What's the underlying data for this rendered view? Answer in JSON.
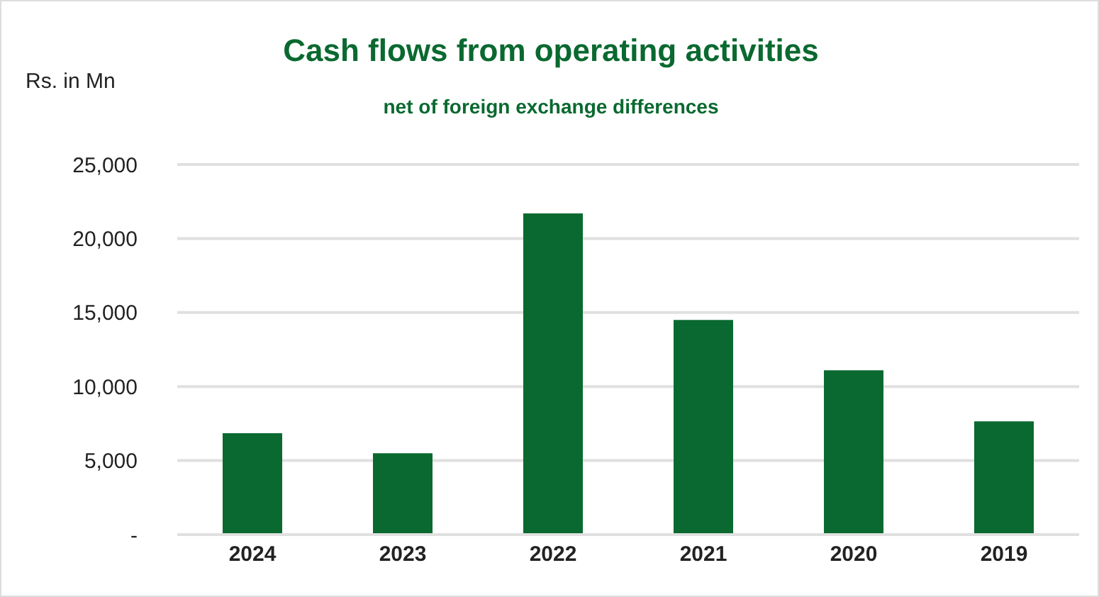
{
  "chart_data": {
    "type": "bar",
    "title": "Cash flows from operating activities",
    "subtitle": "net of foreign exchange differences",
    "ylabel": "Rs. in Mn",
    "categories": [
      "2024",
      "2023",
      "2022",
      "2021",
      "2020",
      "2019"
    ],
    "values": [
      6850,
      5500,
      21700,
      14500,
      11100,
      7650
    ],
    "color": "#0a6930",
    "ylim": [
      0,
      25000
    ],
    "yticks": [
      {
        "value": 0,
        "label": "-"
      },
      {
        "value": 5000,
        "label": "5,000"
      },
      {
        "value": 10000,
        "label": "10,000"
      },
      {
        "value": 15000,
        "label": "15,000"
      },
      {
        "value": 20000,
        "label": "20,000"
      },
      {
        "value": 25000,
        "label": "25,000"
      }
    ],
    "grid": "y"
  }
}
